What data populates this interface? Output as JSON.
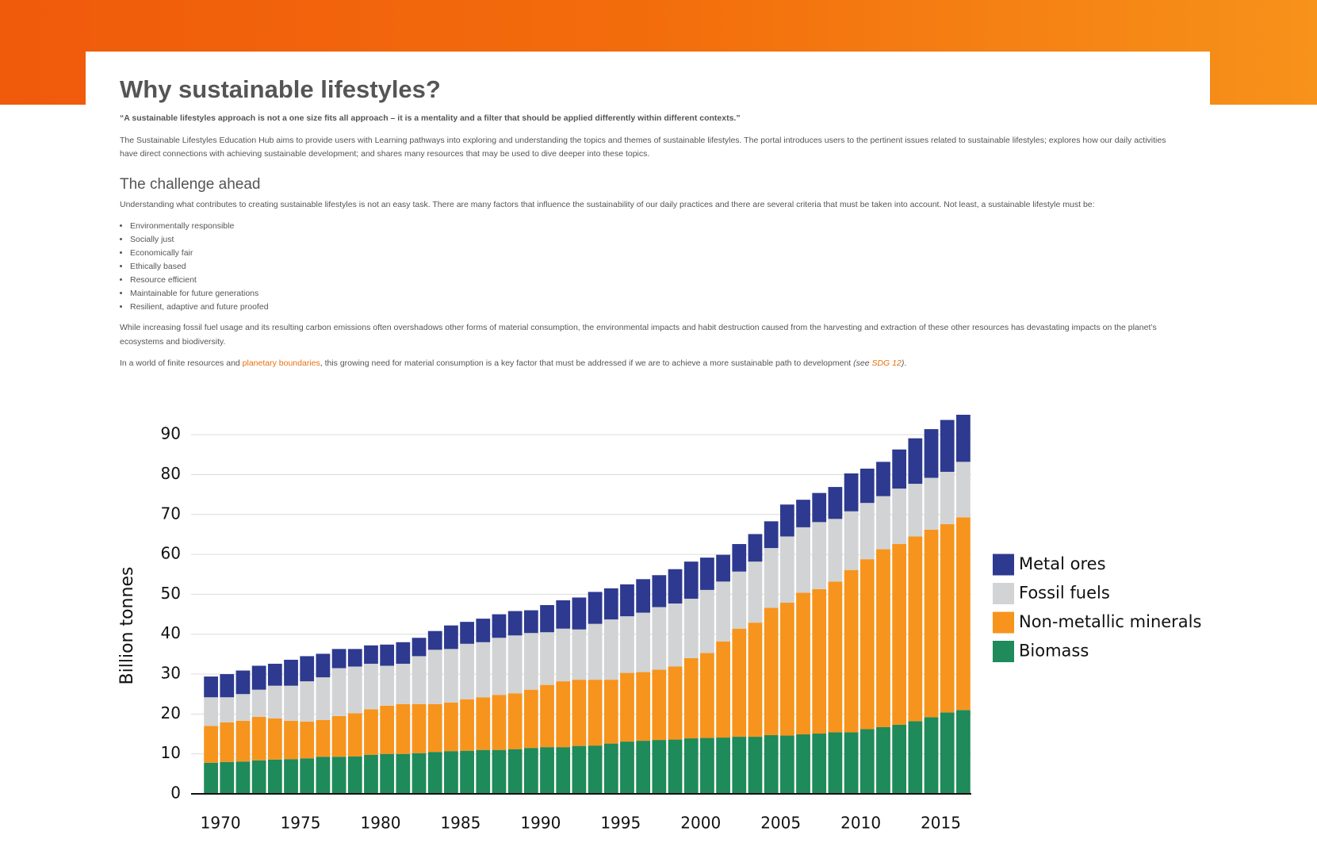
{
  "page": {
    "title": "Why sustainable lifestyles?",
    "quote": "“A sustainable lifestyles approach is not a one size fits all approach – it is a mentality and a filter that should be applied differently within different contexts.”",
    "intro": "The Sustainable Lifestyles Education Hub aims to provide users with Learning pathways into exploring and understanding the topics and themes of sustainable lifestyles. The portal introduces users to the pertinent issues related to sustainable lifestyles; explores how our daily activities have direct connections with achieving sustainable development; and shares many resources that may be used to dive deeper into these topics.",
    "section_title": "The challenge ahead",
    "section_intro": "Understanding what contributes to creating sustainable lifestyles is not an easy task. There are many factors that influence the sustainability of our daily practices and there are several criteria that must be taken into account. Not least, a sustainable lifestyle must be:",
    "criteria": [
      "Environmentally responsible",
      "Socially just",
      "Economically fair",
      "Ethically based",
      "Resource efficient",
      "Maintainable for future generations",
      "Resilient, adaptive and future proofed"
    ],
    "impacts": "While increasing fossil fuel usage and its resulting carbon emissions often overshadows other forms of material consumption, the environmental impacts and habit destruction caused from the harvesting and extraction of these other resources has devastating impacts on the planet’s ecosystems and biodiversity.",
    "closing": {
      "before": "In a world of finite resources and ",
      "link": "planetary boundaries",
      "middle": ", this growing need for material consumption is a key factor that must be addressed if we are to achieve a more sustainable path to development ",
      "note_open": "(see ",
      "note_link": "SDG 12",
      "note_close": ")",
      "end": "."
    }
  },
  "chart_data": {
    "type": "stacked_bar",
    "y_label": "Billion tonnes",
    "categories": [
      "1970",
      null,
      null,
      null,
      null,
      "1975",
      null,
      null,
      null,
      null,
      "1980",
      null,
      null,
      null,
      null,
      "1985",
      null,
      null,
      null,
      null,
      "1990",
      null,
      null,
      null,
      null,
      "1995",
      null,
      null,
      null,
      null,
      "2000",
      null,
      null,
      null,
      null,
      "2005",
      null,
      null,
      null,
      null,
      "2010",
      null,
      null,
      null,
      null,
      "2015",
      null,
      null
    ],
    "series": [
      {
        "name": "Biomass",
        "color": "#1f8a5a",
        "values": [
          7.8,
          8.0,
          8.1,
          8.4,
          8.6,
          8.7,
          8.9,
          9.3,
          9.3,
          9.4,
          9.8,
          10.0,
          10.0,
          10.2,
          10.5,
          10.7,
          10.8,
          11.0,
          11.0,
          11.2,
          11.5,
          11.7,
          11.7,
          12.0,
          12.1,
          12.6,
          13.1,
          13.3,
          13.5,
          13.6,
          13.9,
          14.0,
          14.1,
          14.3,
          14.3,
          14.7,
          14.6,
          14.9,
          15.1,
          15.4,
          15.4,
          16.2,
          16.7,
          17.3,
          18.2,
          19.2,
          20.4,
          21.0
        ]
      },
      {
        "name": "Non-metallic minerals",
        "color": "#f7941d",
        "values": [
          9.2,
          9.9,
          10.2,
          10.9,
          10.3,
          9.6,
          9.2,
          9.2,
          10.2,
          10.8,
          11.4,
          12.1,
          12.5,
          12.3,
          12.0,
          12.2,
          12.9,
          13.2,
          13.8,
          14.0,
          14.6,
          15.6,
          16.5,
          16.6,
          16.5,
          16.0,
          17.2,
          17.2,
          17.6,
          18.3,
          20.1,
          21.3,
          24.1,
          27.1,
          28.6,
          31.9,
          33.3,
          35.5,
          36.2,
          37.8,
          40.7,
          42.6,
          44.6,
          45.3,
          46.3,
          47.0,
          47.2,
          48.3
        ]
      },
      {
        "name": "Fossil fuels",
        "color": "#d1d3d4",
        "values": [
          7.2,
          6.3,
          6.7,
          6.8,
          8.2,
          8.8,
          10.1,
          10.7,
          12.0,
          11.7,
          11.4,
          10.0,
          10.1,
          12.0,
          13.6,
          13.4,
          13.9,
          13.8,
          14.3,
          14.5,
          14.2,
          13.2,
          13.2,
          12.6,
          14.0,
          15.1,
          14.2,
          14.9,
          15.7,
          15.8,
          14.9,
          15.8,
          15.0,
          14.3,
          15.3,
          15.0,
          16.6,
          16.4,
          16.8,
          15.7,
          14.7,
          14.1,
          13.3,
          13.9,
          13.2,
          13.0,
          13.1,
          13.9
        ]
      },
      {
        "name": "Metal ores",
        "color": "#2e3a8f",
        "values": [
          5.2,
          5.8,
          5.9,
          6.0,
          5.5,
          6.5,
          6.3,
          5.9,
          4.8,
          4.4,
          4.6,
          5.3,
          5.4,
          4.6,
          4.7,
          5.9,
          5.5,
          5.9,
          5.9,
          6.1,
          5.7,
          6.8,
          7.1,
          8.0,
          8.0,
          7.8,
          8.0,
          8.4,
          8.0,
          8.6,
          9.3,
          8.1,
          6.7,
          6.9,
          6.9,
          6.7,
          8.0,
          6.9,
          7.3,
          8.0,
          9.5,
          8.6,
          8.6,
          9.8,
          11.4,
          12.2,
          13.0,
          11.8
        ]
      }
    ],
    "ylim": [
      0,
      95
    ],
    "yticks": [
      0,
      10,
      20,
      30,
      40,
      50,
      60,
      70,
      80,
      90
    ],
    "grid": true,
    "legend": "right"
  }
}
